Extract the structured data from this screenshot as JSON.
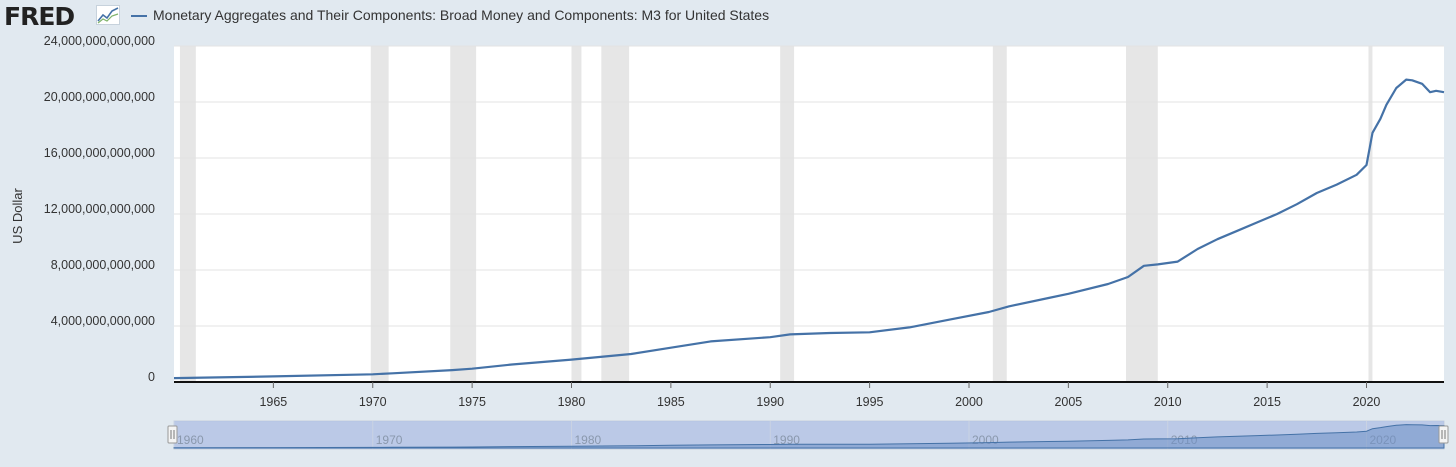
{
  "header": {
    "logo_text": "FRED",
    "logo_icon": "chart-line-icon",
    "legend_label": "Monetary Aggregates and Their Components: Broad Money and Components: M3 for United States"
  },
  "colors": {
    "background": "#e1e9f0",
    "plot_background": "#ffffff",
    "series": "#4572a7",
    "recession": "#e6e6e6",
    "grid": "#e3e3e3",
    "navigator_fill": "#b3c3e4",
    "navigator_line": "#4572a7"
  },
  "chart_data": {
    "type": "line",
    "title": "Monetary Aggregates and Their Components: Broad Money and Components: M3 for United States",
    "xlabel": "",
    "ylabel": "US Dollar",
    "xlim": [
      1960.0,
      2023.9
    ],
    "ylim": [
      0,
      24000000000000
    ],
    "yticks": [
      0,
      4000000000000,
      8000000000000,
      12000000000000,
      16000000000000,
      20000000000000,
      24000000000000
    ],
    "ytick_labels": [
      "0",
      "4,000,000,000,000",
      "8,000,000,000,000",
      "12,000,000,000,000",
      "16,000,000,000,000",
      "20,000,000,000,000",
      "24,000,000,000,000"
    ],
    "xticks": [
      1965,
      1970,
      1975,
      1980,
      1985,
      1990,
      1995,
      2000,
      2005,
      2010,
      2015,
      2020
    ],
    "xtick_labels": [
      "1965",
      "1970",
      "1975",
      "1980",
      "1985",
      "1990",
      "1995",
      "2000",
      "2005",
      "2010",
      "2015",
      "2020"
    ],
    "navigator_ticks": [
      1960,
      1970,
      1980,
      1990,
      2000,
      2010,
      2020
    ],
    "navigator_tick_labels": [
      "1960",
      "1970",
      "1980",
      "1990",
      "2000",
      "2010",
      "2020"
    ],
    "grid": true,
    "legend": "top-left",
    "recessions": [
      [
        1960.3,
        1961.1
      ],
      [
        1969.9,
        1970.8
      ],
      [
        1973.9,
        1975.2
      ],
      [
        1980.0,
        1980.5
      ],
      [
        1981.5,
        1982.9
      ],
      [
        1990.5,
        1991.2
      ],
      [
        2001.2,
        2001.9
      ],
      [
        2007.9,
        2009.5
      ],
      [
        2020.1,
        2020.3
      ]
    ],
    "series": [
      {
        "name": "Monetary Aggregates and Their Components: Broad Money and Components: M3 for United States",
        "x": [
          1960.0,
          1965.0,
          1970.0,
          1971.0,
          1974.0,
          1975.0,
          1977.0,
          1980.0,
          1983.0,
          1985.0,
          1987.0,
          1990.0,
          1991.0,
          1993.0,
          1995.0,
          1997.0,
          1999.0,
          2001.0,
          2002.0,
          2004.0,
          2005.0,
          2007.0,
          2008.0,
          2008.8,
          2009.5,
          2010.5,
          2011.5,
          2012.5,
          2013.5,
          2014.5,
          2015.5,
          2016.5,
          2017.5,
          2018.5,
          2019.5,
          2020.0,
          2020.3,
          2020.7,
          2021.0,
          2021.5,
          2022.0,
          2022.3,
          2022.8,
          2023.2,
          2023.5,
          2023.9
        ],
        "y": [
          280000000000,
          400000000000,
          550000000000,
          620000000000,
          850000000000,
          950000000000,
          1250000000000,
          1600000000000,
          2000000000000,
          2450000000000,
          2900000000000,
          3200000000000,
          3400000000000,
          3500000000000,
          3550000000000,
          3900000000000,
          4450000000000,
          5000000000000,
          5400000000000,
          6000000000000,
          6300000000000,
          7000000000000,
          7500000000000,
          8300000000000,
          8400000000000,
          8600000000000,
          9500000000000,
          10200000000000,
          10800000000000,
          11400000000000,
          12000000000000,
          12700000000000,
          13500000000000,
          14100000000000,
          14800000000000,
          15500000000000,
          17800000000000,
          18800000000000,
          19800000000000,
          21000000000000,
          21600000000000,
          21550000000000,
          21300000000000,
          20700000000000,
          20800000000000,
          20700000000000
        ]
      }
    ]
  }
}
